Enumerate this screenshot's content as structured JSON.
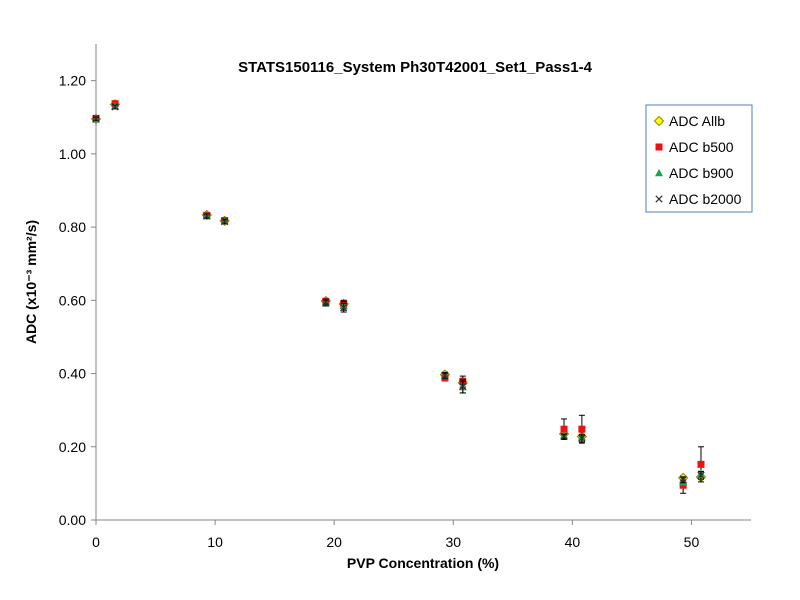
{
  "chart_data": {
    "type": "scatter",
    "title": "STATS150116_System Ph30T42001_Set1_Pass1-4",
    "xlabel": "PVP Concentration  (%)",
    "ylabel": "ADC (x10⁻³ mm²/s)",
    "xlim": [
      0,
      55
    ],
    "ylim": [
      0,
      1.3
    ],
    "xticks": [
      0,
      10,
      20,
      30,
      40,
      50
    ],
    "xtick_labels": [
      "0",
      "10",
      "20",
      "30",
      "40",
      "50"
    ],
    "yticks": [
      0,
      0.2,
      0.4,
      0.6,
      0.8,
      1.0,
      1.2
    ],
    "ytick_labels": [
      "0.00",
      "0.20",
      "0.40",
      "0.60",
      "0.80",
      "1.00",
      "1.20"
    ],
    "legend_position": "top-right",
    "x": [
      0,
      1.6,
      9.3,
      10.8,
      19.3,
      20.8,
      29.3,
      30.8,
      39.3,
      40.8,
      49.3,
      50.8
    ],
    "series": [
      {
        "name": "ADC Allb",
        "marker": "diamond",
        "color": "#ffff00",
        "edge": "#8c8c00",
        "values": [
          1.095,
          1.135,
          0.833,
          0.817,
          0.598,
          0.59,
          0.397,
          0.375,
          0.235,
          0.228,
          0.115,
          0.117
        ],
        "errors": [
          0.005,
          0.005,
          0.006,
          0.006,
          0.007,
          0.008,
          0.007,
          0.012,
          0.005,
          0.006,
          0.006,
          0.006
        ]
      },
      {
        "name": "ADC b500",
        "marker": "square",
        "color": "#ee1111",
        "edge": "#ee1111",
        "values": [
          1.097,
          1.137,
          0.832,
          0.818,
          0.597,
          0.59,
          0.388,
          0.378,
          0.248,
          0.248,
          0.095,
          0.152
        ],
        "errors": [
          0.005,
          0.005,
          0.006,
          0.007,
          0.008,
          0.01,
          0.008,
          0.015,
          0.028,
          0.038,
          0.022,
          0.048
        ]
      },
      {
        "name": "ADC b900",
        "marker": "triangle",
        "color": "#11a84a",
        "edge": "#11a84a",
        "values": [
          1.094,
          1.13,
          0.83,
          0.816,
          0.592,
          0.585,
          0.392,
          0.363,
          0.231,
          0.226,
          0.103,
          0.127
        ],
        "errors": [
          0.005,
          0.005,
          0.005,
          0.006,
          0.008,
          0.012,
          0.008,
          0.016,
          0.005,
          0.006,
          0.006,
          0.006
        ]
      },
      {
        "name": "ADC b2000",
        "marker": "x",
        "color": "#333333",
        "edge": "#333333",
        "values": [
          1.096,
          1.128,
          0.83,
          0.815,
          0.595,
          0.58,
          0.395,
          0.365,
          0.228,
          0.223,
          0.11,
          0.122
        ],
        "errors": [
          0.005,
          0.005,
          0.006,
          0.006,
          0.008,
          0.012,
          0.008,
          0.018,
          0.006,
          0.01,
          0.008,
          0.01
        ]
      }
    ]
  }
}
